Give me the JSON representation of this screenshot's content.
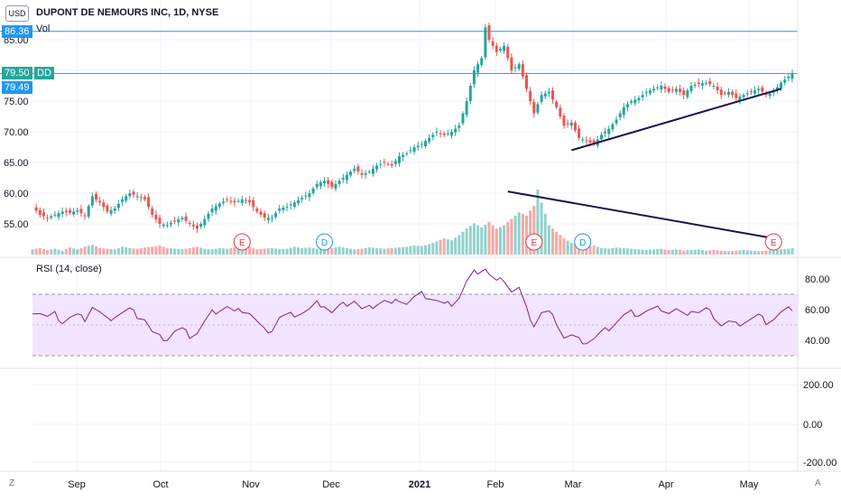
{
  "header": {
    "currency": "USD",
    "title": "DUPONT DE NEMOURS INC, 1D, NYSE",
    "vol_label": "Vol"
  },
  "price_tags": {
    "high": {
      "value": "86.36",
      "color": "#2196f3"
    },
    "dd": {
      "value": "79.50",
      "label": "DD",
      "color": "#26a69a"
    },
    "last": {
      "value": "79.49",
      "color": "#2196f3"
    }
  },
  "rsi": {
    "label": "RSI (14, close)",
    "line_color": "#7b1fa2",
    "band_color": "#f3e5ff"
  },
  "bottom_axis": {
    "right_ticks": [
      "200.00",
      "0.00",
      "-200.00"
    ]
  },
  "corner": {
    "left": "Z",
    "right": "A"
  },
  "chart_data": [
    {
      "type": "candlestick",
      "title": "DUPONT DE NEMOURS INC, 1D, NYSE",
      "y_ticks": [
        "55.00",
        "60.00",
        "65.00",
        "70.00",
        "75.00",
        "80.00",
        "85.00"
      ],
      "x_ticks": [
        "Sep",
        "Oct",
        "Nov",
        "Dec",
        "2021",
        "Feb",
        "Mar",
        "Apr",
        "May"
      ],
      "horizontal_lines": [
        86.36,
        79.5
      ],
      "up_color": "#26a69a",
      "down_color": "#ef5350",
      "close_path": [
        [
          0,
          57.8
        ],
        [
          2,
          56.5
        ],
        [
          4,
          56.0
        ],
        [
          6,
          56.5
        ],
        [
          8,
          57.0
        ],
        [
          10,
          56.8
        ],
        [
          12,
          57.2
        ],
        [
          14,
          56.3
        ],
        [
          16,
          59.5
        ],
        [
          18,
          58.5
        ],
        [
          20,
          57.0
        ],
        [
          22,
          57.5
        ],
        [
          24,
          59.0
        ],
        [
          26,
          60.0
        ],
        [
          28,
          59.5
        ],
        [
          30,
          59.0
        ],
        [
          32,
          56.5
        ],
        [
          34,
          55.0
        ],
        [
          36,
          54.8
        ],
        [
          38,
          55.5
        ],
        [
          40,
          56.0
        ],
        [
          42,
          55.0
        ],
        [
          44,
          54.2
        ],
        [
          46,
          55.8
        ],
        [
          48,
          57.5
        ],
        [
          50,
          58.3
        ],
        [
          52,
          59.0
        ],
        [
          54,
          58.5
        ],
        [
          56,
          59.0
        ],
        [
          58,
          58.5
        ],
        [
          60,
          57.0
        ],
        [
          62,
          56.0
        ],
        [
          64,
          56.0
        ],
        [
          66,
          57.5
        ],
        [
          68,
          57.8
        ],
        [
          70,
          58.5
        ],
        [
          72,
          59.2
        ],
        [
          74,
          60.0
        ],
        [
          76,
          61.5
        ],
        [
          78,
          62.0
        ],
        [
          80,
          61.0
        ],
        [
          82,
          62.0
        ],
        [
          84,
          63.0
        ],
        [
          86,
          64.0
        ],
        [
          88,
          63.0
        ],
        [
          90,
          63.5
        ],
        [
          92,
          64.5
        ],
        [
          94,
          65.0
        ],
        [
          96,
          64.5
        ],
        [
          98,
          66.0
        ],
        [
          100,
          66.5
        ],
        [
          102,
          67.5
        ],
        [
          104,
          68.0
        ],
        [
          106,
          69.0
        ],
        [
          108,
          70.0
        ],
        [
          110,
          69.5
        ],
        [
          112,
          70.0
        ],
        [
          114,
          71.0
        ],
        [
          116,
          75.0
        ],
        [
          118,
          80.0
        ],
        [
          120,
          82.0
        ],
        [
          121,
          87.0
        ],
        [
          122,
          85.0
        ],
        [
          124,
          83.0
        ],
        [
          126,
          84.0
        ],
        [
          128,
          80.0
        ],
        [
          130,
          81.0
        ],
        [
          132,
          77.0
        ],
        [
          134,
          73.0
        ],
        [
          136,
          76.0
        ],
        [
          138,
          76.5
        ],
        [
          140,
          74.0
        ],
        [
          142,
          71.0
        ],
        [
          144,
          71.5
        ],
        [
          146,
          69.0
        ],
        [
          148,
          68.5
        ],
        [
          150,
          68.0
        ],
        [
          152,
          69.5
        ],
        [
          154,
          70.5
        ],
        [
          156,
          72.0
        ],
        [
          158,
          74.0
        ],
        [
          160,
          75.0
        ],
        [
          162,
          75.5
        ],
        [
          164,
          76.5
        ],
        [
          166,
          77.0
        ],
        [
          168,
          77.5
        ],
        [
          170,
          76.5
        ],
        [
          172,
          77.0
        ],
        [
          174,
          76.0
        ],
        [
          176,
          77.5
        ],
        [
          178,
          77.8
        ],
        [
          180,
          78.0
        ],
        [
          182,
          77.5
        ],
        [
          184,
          76.0
        ],
        [
          186,
          76.5
        ],
        [
          188,
          75.5
        ],
        [
          190,
          76.0
        ],
        [
          192,
          76.5
        ],
        [
          194,
          77.0
        ],
        [
          196,
          76.0
        ],
        [
          198,
          76.5
        ],
        [
          200,
          78.0
        ],
        [
          202,
          79.0
        ],
        [
          203,
          79.5
        ]
      ],
      "markers": [
        {
          "x": 56,
          "label": "E",
          "color": "#f23645"
        },
        {
          "x": 78,
          "label": "D",
          "color": "#2196f3"
        },
        {
          "x": 134,
          "label": "E",
          "color": "#f23645"
        },
        {
          "x": 147,
          "label": "D",
          "color": "#2196f3"
        },
        {
          "x": 198,
          "label": "E",
          "color": "#f23645"
        }
      ],
      "trendlines": [
        {
          "from": [
            144,
            67.0
          ],
          "to": [
            200,
            77.0
          ]
        }
      ],
      "volume_trendline": {
        "from": [
          127,
          0.97
        ],
        "to": [
          198,
          0.25
        ]
      },
      "volume": [
        [
          0,
          0.08
        ],
        [
          2,
          0.1
        ],
        [
          4,
          0.07
        ],
        [
          6,
          0.09
        ],
        [
          8,
          0.06
        ],
        [
          10,
          0.11
        ],
        [
          12,
          0.08
        ],
        [
          14,
          0.12
        ],
        [
          16,
          0.15
        ],
        [
          18,
          0.1
        ],
        [
          20,
          0.09
        ],
        [
          22,
          0.08
        ],
        [
          24,
          0.12
        ],
        [
          26,
          0.1
        ],
        [
          28,
          0.09
        ],
        [
          30,
          0.11
        ],
        [
          32,
          0.12
        ],
        [
          34,
          0.14
        ],
        [
          36,
          0.1
        ],
        [
          38,
          0.09
        ],
        [
          40,
          0.08
        ],
        [
          42,
          0.1
        ],
        [
          44,
          0.12
        ],
        [
          46,
          0.09
        ],
        [
          48,
          0.08
        ],
        [
          50,
          0.1
        ],
        [
          52,
          0.09
        ],
        [
          54,
          0.11
        ],
        [
          56,
          0.18
        ],
        [
          58,
          0.12
        ],
        [
          60,
          0.08
        ],
        [
          62,
          0.09
        ],
        [
          64,
          0.1
        ],
        [
          66,
          0.08
        ],
        [
          68,
          0.09
        ],
        [
          70,
          0.12
        ],
        [
          72,
          0.1
        ],
        [
          74,
          0.11
        ],
        [
          76,
          0.09
        ],
        [
          78,
          0.08
        ],
        [
          80,
          0.1
        ],
        [
          82,
          0.12
        ],
        [
          84,
          0.1
        ],
        [
          86,
          0.08
        ],
        [
          88,
          0.09
        ],
        [
          90,
          0.11
        ],
        [
          92,
          0.1
        ],
        [
          94,
          0.09
        ],
        [
          96,
          0.1
        ],
        [
          98,
          0.11
        ],
        [
          100,
          0.12
        ],
        [
          102,
          0.14
        ],
        [
          104,
          0.13
        ],
        [
          106,
          0.16
        ],
        [
          108,
          0.2
        ],
        [
          110,
          0.25
        ],
        [
          112,
          0.22
        ],
        [
          114,
          0.3
        ],
        [
          116,
          0.4
        ],
        [
          118,
          0.48
        ],
        [
          120,
          0.42
        ],
        [
          122,
          0.5
        ],
        [
          124,
          0.4
        ],
        [
          126,
          0.45
        ],
        [
          128,
          0.55
        ],
        [
          130,
          0.65
        ],
        [
          132,
          0.6
        ],
        [
          134,
          0.75
        ],
        [
          135,
          1.0
        ],
        [
          136,
          0.8
        ],
        [
          138,
          0.45
        ],
        [
          140,
          0.35
        ],
        [
          142,
          0.25
        ],
        [
          144,
          0.18
        ],
        [
          146,
          0.15
        ],
        [
          148,
          0.12
        ],
        [
          150,
          0.14
        ],
        [
          152,
          0.1
        ],
        [
          154,
          0.09
        ],
        [
          156,
          0.11
        ],
        [
          158,
          0.1
        ],
        [
          160,
          0.09
        ],
        [
          162,
          0.08
        ],
        [
          164,
          0.07
        ],
        [
          166,
          0.08
        ],
        [
          168,
          0.09
        ],
        [
          170,
          0.07
        ],
        [
          172,
          0.08
        ],
        [
          174,
          0.06
        ],
        [
          176,
          0.07
        ],
        [
          178,
          0.08
        ],
        [
          180,
          0.06
        ],
        [
          182,
          0.07
        ],
        [
          184,
          0.06
        ],
        [
          186,
          0.05
        ],
        [
          188,
          0.06
        ],
        [
          190,
          0.07
        ],
        [
          192,
          0.06
        ],
        [
          194,
          0.05
        ],
        [
          196,
          0.06
        ],
        [
          198,
          0.07
        ],
        [
          200,
          0.08
        ],
        [
          202,
          0.09
        ],
        [
          203,
          0.1
        ]
      ]
    },
    {
      "type": "line",
      "title": "RSI (14, close)",
      "y_ticks": [
        "40.00",
        "60.00",
        "80.00"
      ],
      "band": [
        30,
        70
      ],
      "ylim": [
        25,
        95
      ],
      "values": [
        [
          0,
          59
        ],
        [
          2,
          58
        ],
        [
          4,
          55
        ],
        [
          6,
          57
        ],
        [
          8,
          52
        ],
        [
          10,
          55
        ],
        [
          12,
          56
        ],
        [
          14,
          54
        ],
        [
          16,
          62
        ],
        [
          18,
          58
        ],
        [
          20,
          53
        ],
        [
          22,
          56
        ],
        [
          24,
          58
        ],
        [
          26,
          60
        ],
        [
          28,
          56
        ],
        [
          30,
          54
        ],
        [
          32,
          45
        ],
        [
          34,
          42
        ],
        [
          36,
          41
        ],
        [
          38,
          46
        ],
        [
          40,
          47
        ],
        [
          42,
          43
        ],
        [
          44,
          45
        ],
        [
          46,
          52
        ],
        [
          48,
          58
        ],
        [
          50,
          60
        ],
        [
          52,
          62
        ],
        [
          54,
          58
        ],
        [
          56,
          60
        ],
        [
          58,
          58
        ],
        [
          60,
          52
        ],
        [
          62,
          46
        ],
        [
          64,
          47
        ],
        [
          66,
          55
        ],
        [
          68,
          56
        ],
        [
          70,
          57
        ],
        [
          72,
          58
        ],
        [
          74,
          60
        ],
        [
          76,
          64
        ],
        [
          78,
          63
        ],
        [
          80,
          58
        ],
        [
          82,
          62
        ],
        [
          84,
          64
        ],
        [
          86,
          66
        ],
        [
          88,
          60
        ],
        [
          90,
          61
        ],
        [
          92,
          64
        ],
        [
          94,
          66
        ],
        [
          96,
          63
        ],
        [
          98,
          67
        ],
        [
          100,
          64
        ],
        [
          102,
          68
        ],
        [
          104,
          70
        ],
        [
          106,
          68
        ],
        [
          108,
          66
        ],
        [
          110,
          63
        ],
        [
          112,
          64
        ],
        [
          114,
          68
        ],
        [
          116,
          78
        ],
        [
          118,
          84
        ],
        [
          120,
          86
        ],
        [
          121,
          87
        ],
        [
          122,
          83
        ],
        [
          124,
          78
        ],
        [
          126,
          80
        ],
        [
          128,
          72
        ],
        [
          130,
          74
        ],
        [
          132,
          60
        ],
        [
          134,
          50
        ],
        [
          136,
          58
        ],
        [
          138,
          58
        ],
        [
          140,
          52
        ],
        [
          142,
          42
        ],
        [
          144,
          43
        ],
        [
          146,
          40
        ],
        [
          148,
          39
        ],
        [
          150,
          41
        ],
        [
          152,
          45
        ],
        [
          154,
          48
        ],
        [
          156,
          52
        ],
        [
          158,
          56
        ],
        [
          160,
          58
        ],
        [
          162,
          57
        ],
        [
          164,
          59
        ],
        [
          166,
          60
        ],
        [
          168,
          61
        ],
        [
          170,
          58
        ],
        [
          172,
          60
        ],
        [
          174,
          56
        ],
        [
          176,
          60
        ],
        [
          178,
          58
        ],
        [
          180,
          60
        ],
        [
          182,
          56
        ],
        [
          184,
          50
        ],
        [
          186,
          52
        ],
        [
          188,
          50
        ],
        [
          190,
          52
        ],
        [
          192,
          54
        ],
        [
          194,
          56
        ],
        [
          196,
          52
        ],
        [
          198,
          54
        ],
        [
          200,
          58
        ],
        [
          202,
          60
        ],
        [
          203,
          61
        ]
      ]
    }
  ]
}
